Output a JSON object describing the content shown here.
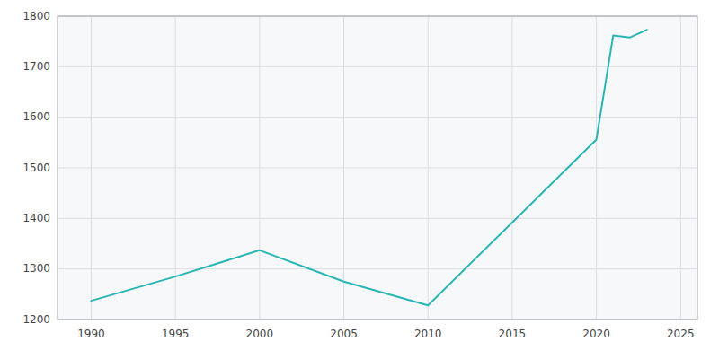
{
  "chart_data": {
    "type": "line",
    "x": [
      1990,
      1995,
      2000,
      2005,
      2010,
      2020,
      2021,
      2022,
      2023
    ],
    "values": [
      1237,
      1285,
      1337,
      1275,
      1228,
      1556,
      1762,
      1758,
      1773
    ],
    "color": "#2ab5b5",
    "xlim": [
      1988,
      2026
    ],
    "ylim": [
      1200,
      1800
    ],
    "xticks": [
      1990,
      1995,
      2000,
      2005,
      2010,
      2015,
      2020,
      2025
    ],
    "yticks": [
      1200,
      1300,
      1400,
      1500,
      1600,
      1700,
      1800
    ],
    "grid": true
  }
}
